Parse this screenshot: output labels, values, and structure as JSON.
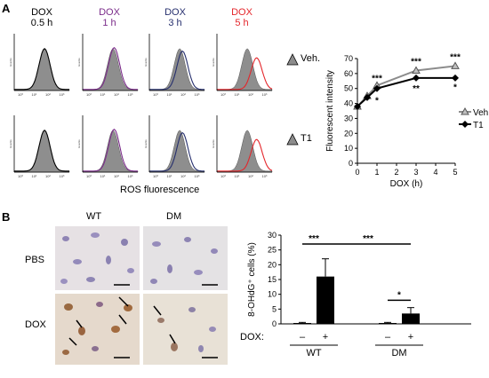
{
  "panel_a": {
    "letter": "A",
    "timepoints": [
      {
        "drug": "DOX",
        "time": "0.5 h",
        "color": "#000000"
      },
      {
        "drug": "DOX",
        "time": "1 h",
        "color": "#7b2c8a"
      },
      {
        "drug": "DOX",
        "time": "3 h",
        "color": "#27306e"
      },
      {
        "drug": "DOX",
        "time": "5 h",
        "color": "#e4262b"
      }
    ],
    "row_labels": [
      "Veh.",
      "T1"
    ],
    "hist_ylabel": "Events",
    "hist_xticks": [
      "10⁰",
      "10¹",
      "10²",
      "10³"
    ],
    "xlabel": "ROS fluorescence"
  },
  "panel_b": {
    "letter": "B",
    "col_labels": [
      "WT",
      "DM"
    ],
    "row_labels": [
      "PBS",
      "DOX"
    ]
  },
  "chart_data": [
    {
      "type": "line",
      "ylabel": "Fluorescent intensity",
      "xlabel": "DOX (h)",
      "xlim": [
        0,
        5
      ],
      "ylim": [
        0,
        70
      ],
      "xticks": [
        "0",
        "1",
        "2",
        "3",
        "4",
        "5"
      ],
      "yticks": [
        "0",
        "10",
        "20",
        "30",
        "40",
        "50",
        "60",
        "70"
      ],
      "x": [
        0,
        0.5,
        1,
        3,
        5
      ],
      "series": [
        {
          "name": "Veh.",
          "values": [
            38,
            45,
            52,
            62,
            65
          ],
          "color": "#8c8c8c",
          "marker": "triangle"
        },
        {
          "name": "T1",
          "values": [
            38,
            44,
            50,
            57,
            57
          ],
          "color": "#000000",
          "marker": "diamond"
        }
      ],
      "annotations": [
        {
          "x": 1,
          "y": 55,
          "text": "***"
        },
        {
          "x": 1,
          "y": 40,
          "text": "*"
        },
        {
          "x": 3,
          "y": 66,
          "text": "***"
        },
        {
          "x": 3,
          "y": 48,
          "text": "**"
        },
        {
          "x": 5,
          "y": 69,
          "text": "***"
        },
        {
          "x": 5,
          "y": 49,
          "text": "*"
        }
      ],
      "legend": "right"
    },
    {
      "type": "bar",
      "ylabel": "8-OHdG⁺ cells (%)",
      "ylim": [
        0,
        30
      ],
      "yticks": [
        "0",
        "5",
        "10",
        "15",
        "20",
        "25",
        "30"
      ],
      "dox_label": "DOX:",
      "dox_signs": [
        "–",
        "+",
        "–",
        "+"
      ],
      "groups": [
        "WT",
        "DM"
      ],
      "values": [
        0.3,
        16.0,
        0.3,
        3.5
      ],
      "errors": [
        0.2,
        6.0,
        0.2,
        2.0
      ],
      "sig": [
        {
          "text": "***",
          "from": 0,
          "to": 1,
          "y": 27
        },
        {
          "text": "***",
          "from": 1,
          "to": 3,
          "y": 27
        },
        {
          "text": "*",
          "from": 2,
          "to": 3,
          "y": 8
        }
      ]
    }
  ]
}
